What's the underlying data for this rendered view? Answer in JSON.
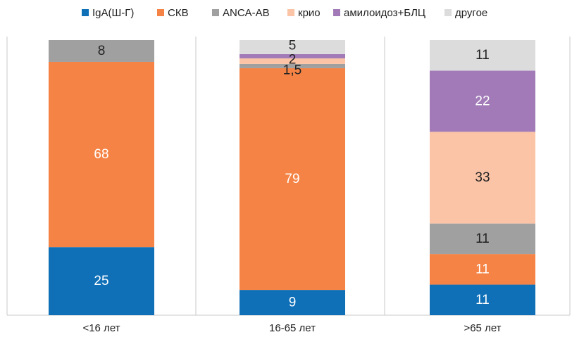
{
  "chart_data": {
    "type": "bar",
    "stacked": true,
    "normalized_to_percent": true,
    "categories": [
      "<16 лет",
      "16-65 лет",
      ">65 лет"
    ],
    "series": [
      {
        "name": "IgA(Ш-Г)",
        "color": "#0f6fb7",
        "values": [
          25,
          9,
          11
        ],
        "labels": [
          "25",
          "9",
          "11"
        ]
      },
      {
        "name": "СКВ",
        "color": "#f58345",
        "values": [
          68,
          79,
          11
        ],
        "labels": [
          "68",
          "79",
          "11"
        ]
      },
      {
        "name": "ANCA-АВ",
        "color": "#a0a0a0",
        "values": [
          8,
          1.5,
          11
        ],
        "labels": [
          "8",
          "1,5",
          "11"
        ]
      },
      {
        "name": "крио",
        "color": "#fbc4a6",
        "values": [
          0,
          2,
          33
        ],
        "labels": [
          "",
          "2",
          "33"
        ]
      },
      {
        "name": "амилоидоз+БЛЦ",
        "color": "#a17ab7",
        "values": [
          0,
          1.5,
          22
        ],
        "labels": [
          "",
          "",
          "22"
        ]
      },
      {
        "name": "другое",
        "color": "#dcdcdc",
        "values": [
          0,
          5,
          11
        ],
        "labels": [
          "",
          "5",
          "11"
        ]
      }
    ],
    "legend_position": "top",
    "grid": false
  }
}
